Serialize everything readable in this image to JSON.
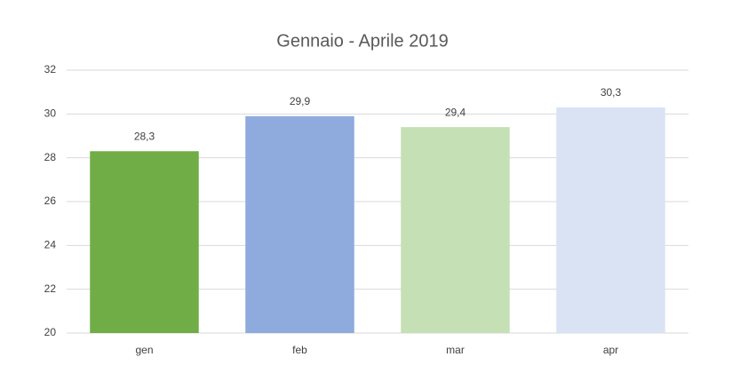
{
  "chart_data": {
    "type": "bar",
    "title": "Gennaio - Aprile 2019",
    "categories": [
      "gen",
      "feb",
      "mar",
      "apr"
    ],
    "values": [
      28.3,
      29.9,
      29.4,
      30.3
    ],
    "value_labels": [
      "28,3",
      "29,9",
      "29,4",
      "30,3"
    ],
    "colors": [
      "#70ad47",
      "#8faadc",
      "#c5e0b4",
      "#dae3f3"
    ],
    "ylim": [
      20,
      32
    ],
    "yticks": [
      20,
      22,
      24,
      26,
      28,
      30,
      32
    ],
    "grid": true
  }
}
